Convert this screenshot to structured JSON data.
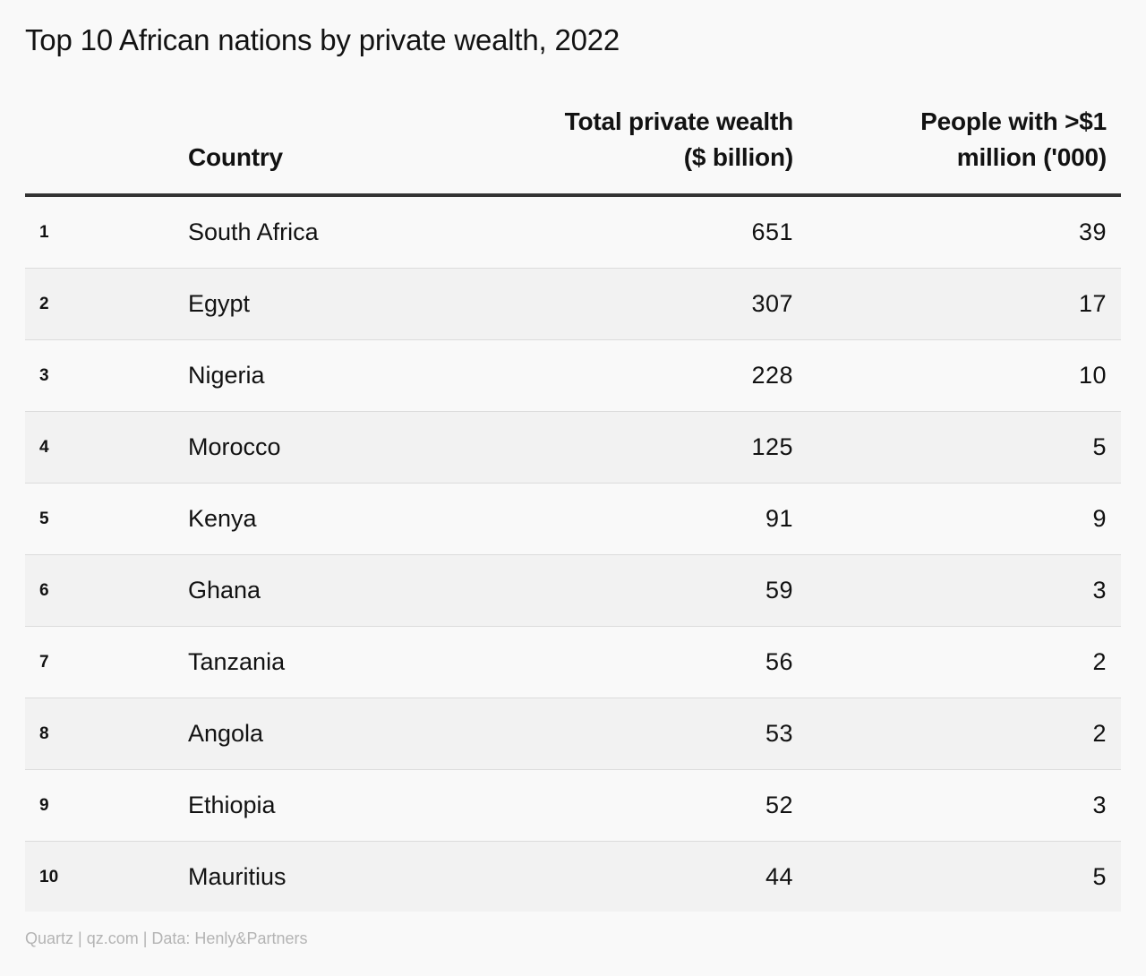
{
  "title": "Top 10 African nations by private wealth, 2022",
  "columns": {
    "country": "Country",
    "wealth_line1": "Total private wealth",
    "wealth_line2": "($ billion)",
    "millionaires_line1": "People with >$1",
    "millionaires_line2": "million ('000)"
  },
  "chart_data": {
    "type": "table",
    "title": "Top 10 African nations by private wealth, 2022",
    "columns": [
      "",
      "Country",
      "Total private wealth ($ billion)",
      "People with >$1 million ('000)"
    ],
    "rows": [
      {
        "rank": "1",
        "country": "South Africa",
        "wealth": "651",
        "millionaires": "39"
      },
      {
        "rank": "2",
        "country": "Egypt",
        "wealth": "307",
        "millionaires": "17"
      },
      {
        "rank": "3",
        "country": "Nigeria",
        "wealth": "228",
        "millionaires": "10"
      },
      {
        "rank": "4",
        "country": "Morocco",
        "wealth": "125",
        "millionaires": "5"
      },
      {
        "rank": "5",
        "country": "Kenya",
        "wealth": "91",
        "millionaires": "9"
      },
      {
        "rank": "6",
        "country": "Ghana",
        "wealth": "59",
        "millionaires": "3"
      },
      {
        "rank": "7",
        "country": "Tanzania",
        "wealth": "56",
        "millionaires": "2"
      },
      {
        "rank": "8",
        "country": "Angola",
        "wealth": "53",
        "millionaires": "2"
      },
      {
        "rank": "9",
        "country": "Ethiopia",
        "wealth": "52",
        "millionaires": "3"
      },
      {
        "rank": "10",
        "country": "Mauritius",
        "wealth": "44",
        "millionaires": "5"
      }
    ]
  },
  "footer": "Quartz | qz.com | Data: Henly&Partners"
}
